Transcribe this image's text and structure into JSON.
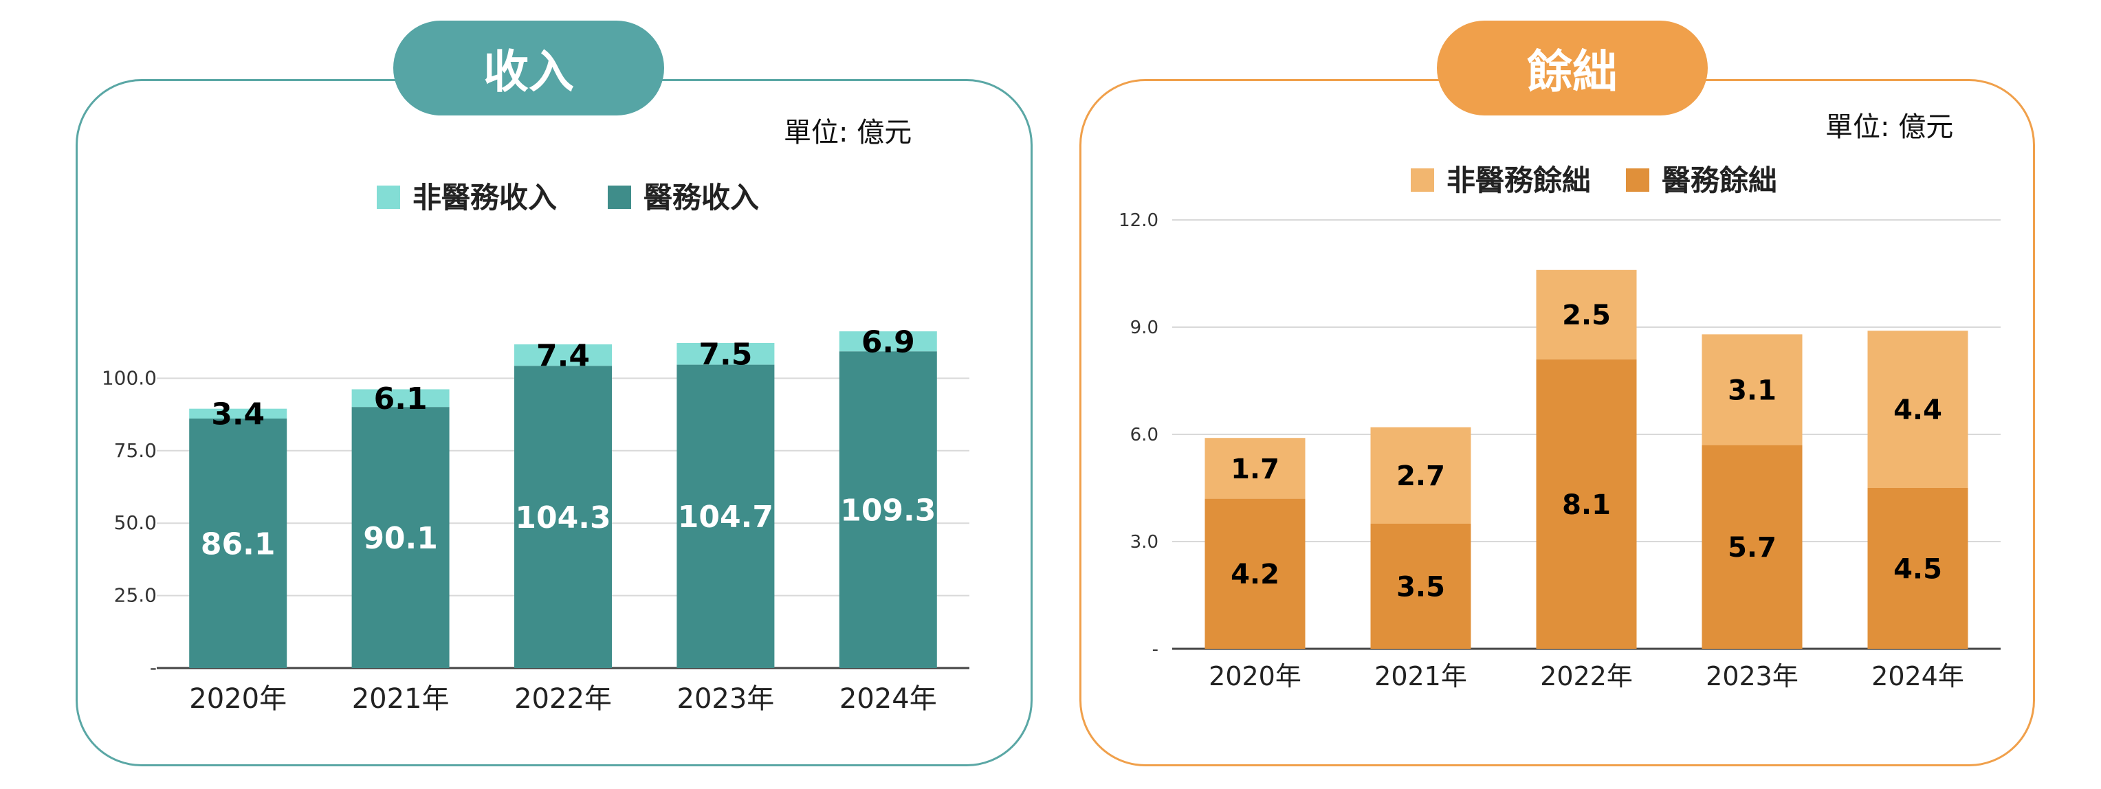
{
  "panels": [
    {
      "title": "收入",
      "unit": "單位: 億元",
      "chart_data": {
        "type": "bar",
        "stacked": true,
        "categories": [
          "2020年",
          "2021年",
          "2022年",
          "2023年",
          "2024年"
        ],
        "series": [
          {
            "name": "醫務收入",
            "values": [
              86.1,
              90.1,
              104.3,
              104.7,
              109.3
            ],
            "color": "#3f8d8a",
            "label_color": "#ffffff"
          },
          {
            "name": "非醫務收入",
            "values": [
              3.4,
              6.1,
              7.4,
              7.5,
              6.9
            ],
            "color": "#83ddd5",
            "label_color": "#000000"
          }
        ],
        "legend": [
          "非醫務收入",
          "醫務收入"
        ],
        "legend_position": "top",
        "y_ticks": [
          "-",
          "25.0",
          "50.0",
          "75.0",
          "100.0"
        ],
        "ylim": [
          0,
          125
        ],
        "grid": true
      }
    },
    {
      "title": "餘絀",
      "unit": "單位: 億元",
      "chart_data": {
        "type": "bar",
        "stacked": true,
        "categories": [
          "2020年",
          "2021年",
          "2022年",
          "2023年",
          "2024年"
        ],
        "series": [
          {
            "name": "醫務餘絀",
            "values": [
              4.2,
              3.5,
              8.1,
              5.7,
              4.5
            ],
            "color": "#e0903a",
            "label_color": "#000000"
          },
          {
            "name": "非醫務餘絀",
            "values": [
              1.7,
              2.7,
              2.5,
              3.1,
              4.4
            ],
            "color": "#f2b66f",
            "label_color": "#000000"
          }
        ],
        "legend": [
          "非醫務餘絀",
          "醫務餘絀"
        ],
        "legend_position": "top",
        "y_ticks": [
          "-",
          "3.0",
          "6.0",
          "9.0",
          "12.0"
        ],
        "ylim": [
          0,
          12
        ],
        "grid": true
      }
    }
  ]
}
